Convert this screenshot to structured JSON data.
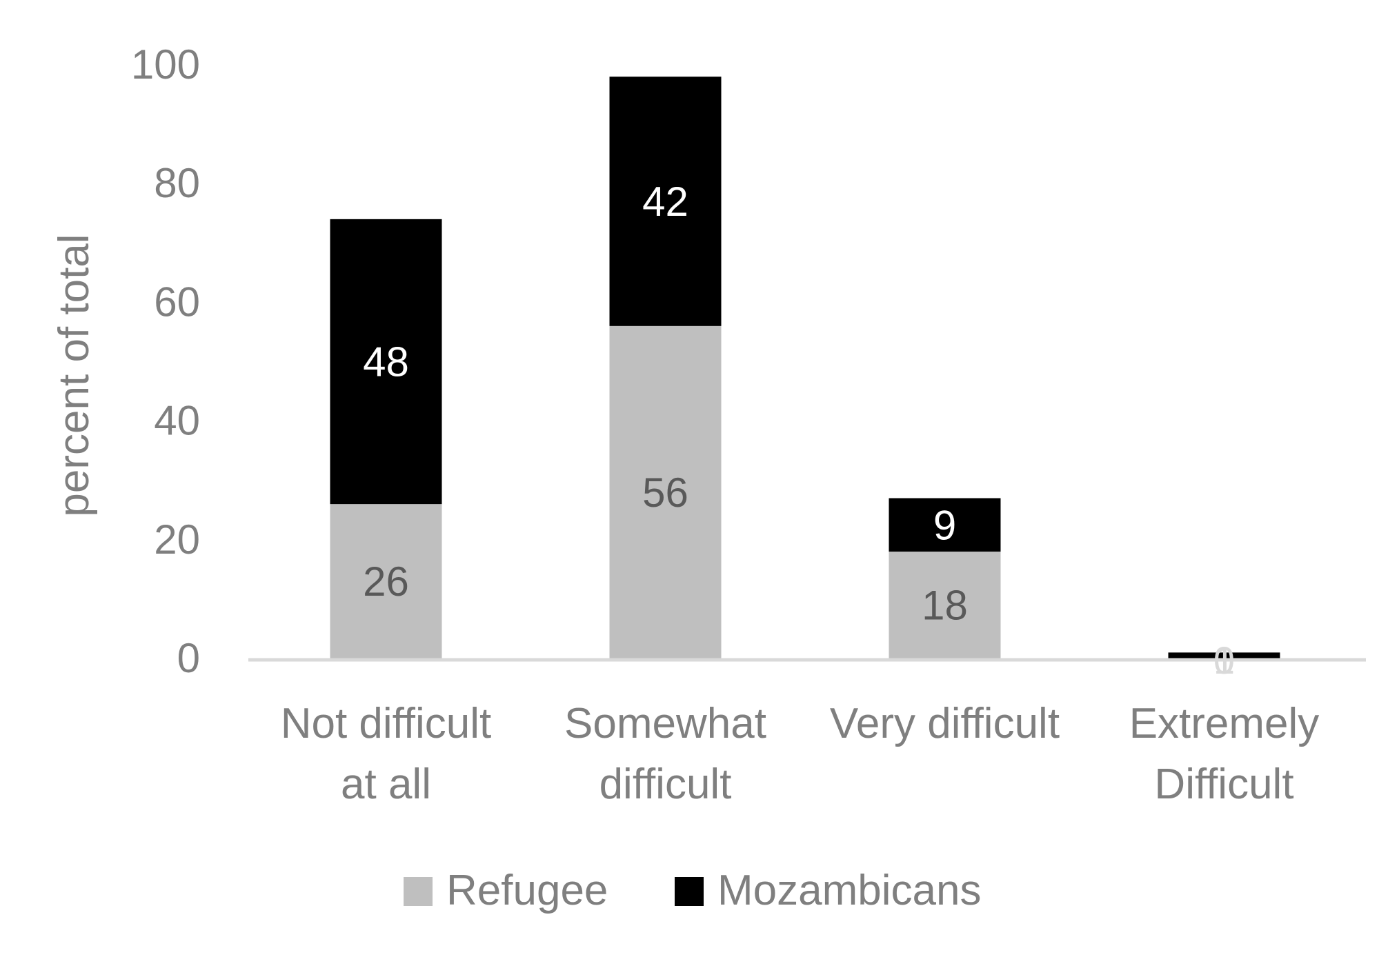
{
  "chart_data": {
    "type": "bar",
    "stacked": true,
    "categories": [
      [
        "Not difficult",
        "at all"
      ],
      [
        "Somewhat",
        "difficult"
      ],
      [
        "Very difficult"
      ],
      [
        "Extremely",
        "Difficult"
      ]
    ],
    "series": [
      {
        "name": "Refugee",
        "values": [
          26,
          56,
          18,
          0
        ],
        "labels": [
          "26",
          "56",
          "18",
          "0"
        ],
        "color": "#bfbfbf",
        "label_color": "#595959"
      },
      {
        "name": "Mozambicans",
        "values": [
          48,
          42,
          9,
          1
        ],
        "labels": [
          "48",
          "42",
          "9",
          "1"
        ],
        "color": "#000000",
        "label_color": "#ffffff"
      }
    ],
    "ylabel": "percent of total",
    "xlabel": "",
    "ylim": [
      0,
      100
    ],
    "yticks": [
      "0",
      "20",
      "40",
      "60",
      "80",
      "100"
    ],
    "grid": false,
    "legend_position": "bottom",
    "axis_text_color": "#7f7f7f",
    "axis_line_color": "#d9d9d9"
  }
}
